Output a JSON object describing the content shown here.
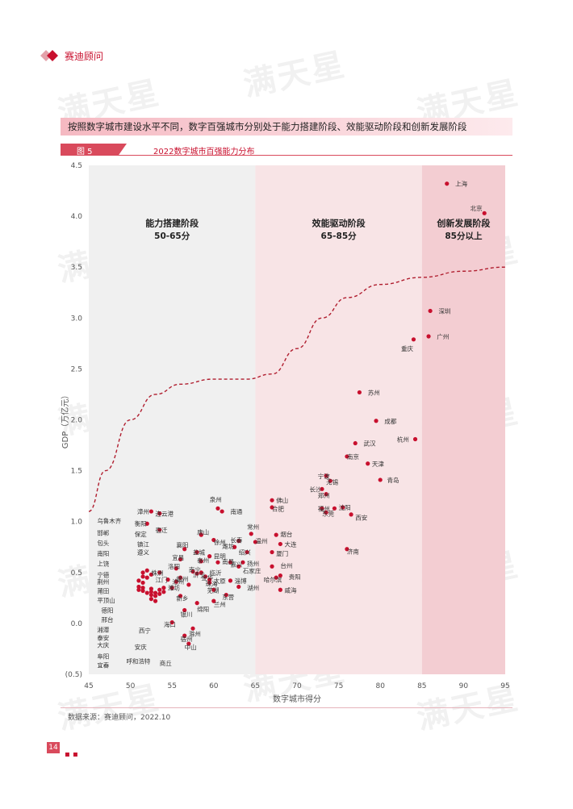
{
  "brand": {
    "name": "赛迪顾问"
  },
  "watermark": {
    "text": "满天星"
  },
  "headline": "按照数字城市建设水平不同，数字百强城市分别处于能力搭建阶段、效能驱动阶段和创新发展阶段",
  "figure": {
    "label": "图 5",
    "title": "2022数字城市百强能力分布"
  },
  "source": "数据来源：赛迪顾问，2022.10",
  "page": {
    "number": "14"
  },
  "chart_data": {
    "type": "scatter",
    "xlabel": "数字城市得分",
    "ylabel": "GDP（万亿元）",
    "xlim": [
      45,
      95
    ],
    "ylim": [
      -0.5,
      4.5
    ],
    "xticks": [
      "45",
      "50",
      "55",
      "60",
      "65",
      "70",
      "75",
      "80",
      "85",
      "90",
      "95"
    ],
    "yticks": [
      "(0.5)",
      "0.0",
      "0.5",
      "1.0",
      "1.5",
      "2.0",
      "2.5",
      "3.0",
      "3.5",
      "4.0",
      "4.5"
    ],
    "colors": {
      "point": "#c8102e",
      "zone1": "#f0f0f0",
      "zone2": "#f8e4e6",
      "zone3": "#f3cdd2",
      "curve": "#b01e2f"
    },
    "zones": [
      {
        "name": "能力搭建阶段",
        "range": "50-65分",
        "x0": 45,
        "x1": 65
      },
      {
        "name": "效能驱动阶段",
        "range": "65-85分",
        "x0": 65,
        "x1": 85
      },
      {
        "name": "创新发展阶段",
        "range": "85分以上",
        "x0": 85,
        "x1": 95
      }
    ],
    "trend_curve": [
      [
        45,
        1.1
      ],
      [
        47,
        1.5
      ],
      [
        50,
        2.0
      ],
      [
        53,
        2.25
      ],
      [
        56,
        2.35
      ],
      [
        60,
        2.4
      ],
      [
        64,
        2.4
      ],
      [
        67,
        2.45
      ],
      [
        70,
        2.7
      ],
      [
        73,
        3.0
      ],
      [
        76,
        3.2
      ],
      [
        80,
        3.33
      ],
      [
        85,
        3.4
      ],
      [
        90,
        3.46
      ],
      [
        95,
        3.5
      ]
    ],
    "points": [
      {
        "name": "上海",
        "x": 88.0,
        "y": 4.32
      },
      {
        "name": "北京",
        "x": 92.5,
        "y": 4.03
      },
      {
        "name": "深圳",
        "x": 86.0,
        "y": 3.07
      },
      {
        "name": "广州",
        "x": 85.8,
        "y": 2.82
      },
      {
        "name": "重庆",
        "x": 84.0,
        "y": 2.79
      },
      {
        "name": "苏州",
        "x": 77.5,
        "y": 2.27
      },
      {
        "name": "成都",
        "x": 79.5,
        "y": 1.99
      },
      {
        "name": "杭州",
        "x": 84.2,
        "y": 1.81
      },
      {
        "name": "武汉",
        "x": 77.0,
        "y": 1.77
      },
      {
        "name": "南京",
        "x": 76.0,
        "y": 1.64
      },
      {
        "name": "天津",
        "x": 78.5,
        "y": 1.57
      },
      {
        "name": "宁波",
        "x": 73.5,
        "y": 1.45
      },
      {
        "name": "无锡",
        "x": 74.0,
        "y": 1.4
      },
      {
        "name": "青岛",
        "x": 80.0,
        "y": 1.41
      },
      {
        "name": "长沙",
        "x": 73.0,
        "y": 1.32
      },
      {
        "name": "郑州",
        "x": 73.5,
        "y": 1.27
      },
      {
        "name": "福州",
        "x": 74.5,
        "y": 1.13
      },
      {
        "name": "济南",
        "x": 75.5,
        "y": 1.14
      },
      {
        "name": "东莞",
        "x": 73.5,
        "y": 1.09
      },
      {
        "name": "西安",
        "x": 76.5,
        "y": 1.07
      },
      {
        "name": "沈阳",
        "x": 73.0,
        "y": 1.13
      },
      {
        "name": "佛山",
        "x": 67.0,
        "y": 1.21
      },
      {
        "name": "合肥",
        "x": 67.0,
        "y": 1.14
      },
      {
        "name": "泉州",
        "x": 60.5,
        "y": 1.13
      },
      {
        "name": "南通",
        "x": 61.0,
        "y": 1.1
      },
      {
        "name": "常州",
        "x": 64.5,
        "y": 0.88
      },
      {
        "name": "烟台",
        "x": 67.5,
        "y": 0.87
      },
      {
        "name": "长春",
        "x": 63.0,
        "y": 0.81
      },
      {
        "name": "温州",
        "x": 65.0,
        "y": 0.8
      },
      {
        "name": "大连",
        "x": 68.0,
        "y": 0.78
      },
      {
        "name": "潍坊",
        "x": 62.5,
        "y": 0.75
      },
      {
        "name": "绍兴",
        "x": 64.0,
        "y": 0.7
      },
      {
        "name": "厦门",
        "x": 67.0,
        "y": 0.7
      },
      {
        "name": "扬州",
        "x": 63.5,
        "y": 0.6
      },
      {
        "name": "嘉兴",
        "x": 62.0,
        "y": 0.6
      },
      {
        "name": "石家庄",
        "x": 63.0,
        "y": 0.56
      },
      {
        "name": "台州",
        "x": 67.0,
        "y": 0.56
      },
      {
        "name": "济南2",
        "x": 76.0,
        "y": 0.73
      },
      {
        "name": "贵阳",
        "x": 68.0,
        "y": 0.47
      },
      {
        "name": "哈尔滨",
        "x": 67.5,
        "y": 0.45
      },
      {
        "name": "威海",
        "x": 68.0,
        "y": 0.33
      },
      {
        "name": "淄博",
        "x": 62.0,
        "y": 0.42
      },
      {
        "name": "湖州",
        "x": 63.0,
        "y": 0.36
      },
      {
        "name": "芜湖",
        "x": 60.0,
        "y": 0.33
      },
      {
        "name": "东营",
        "x": 61.5,
        "y": 0.28
      },
      {
        "name": "珠海",
        "x": 59.5,
        "y": 0.4
      },
      {
        "name": "兰州",
        "x": 60.0,
        "y": 0.22
      },
      {
        "name": "徐州",
        "x": 60.0,
        "y": 0.82
      },
      {
        "name": "唐山",
        "x": 58.5,
        "y": 0.87
      },
      {
        "name": "襄阳",
        "x": 56.5,
        "y": 0.73
      },
      {
        "name": "盐城",
        "x": 58.0,
        "y": 0.7
      },
      {
        "name": "昆明",
        "x": 59.5,
        "y": 0.66
      },
      {
        "name": "宜昌",
        "x": 56.0,
        "y": 0.63
      },
      {
        "name": "泰州",
        "x": 58.5,
        "y": 0.61
      },
      {
        "name": "南昌",
        "x": 60.5,
        "y": 0.6
      },
      {
        "name": "洛阳",
        "x": 55.5,
        "y": 0.54
      },
      {
        "name": "南宁",
        "x": 57.5,
        "y": 0.51
      },
      {
        "name": "济宁",
        "x": 58.0,
        "y": 0.49
      },
      {
        "name": "临沂",
        "x": 58.5,
        "y": 0.5
      },
      {
        "name": "金华",
        "x": 59.0,
        "y": 0.46
      },
      {
        "name": "太原",
        "x": 59.5,
        "y": 0.43
      },
      {
        "name": "赣州",
        "x": 56.0,
        "y": 0.45
      },
      {
        "name": "沧州",
        "x": 55.5,
        "y": 0.41
      },
      {
        "name": "保定",
        "x": 57.0,
        "y": 0.38
      },
      {
        "name": "株洲",
        "x": 53.5,
        "y": 0.5
      },
      {
        "name": "江门",
        "x": 54.5,
        "y": 0.43
      },
      {
        "name": "潍坊2",
        "x": 55.0,
        "y": 0.35
      },
      {
        "name": "新乡",
        "x": 56.0,
        "y": 0.27
      },
      {
        "name": "绵阳",
        "x": 58.0,
        "y": 0.2
      },
      {
        "name": "银川",
        "x": 56.5,
        "y": 0.13
      },
      {
        "name": "海口",
        "x": 55.0,
        "y": 0.01
      },
      {
        "name": "滁州",
        "x": 57.5,
        "y": -0.05
      },
      {
        "name": "宿州",
        "x": 56.5,
        "y": -0.12
      },
      {
        "name": "中山",
        "x": 57.0,
        "y": -0.2
      },
      {
        "name": "漳州",
        "x": 52.5,
        "y": 1.1
      },
      {
        "name": "连云港",
        "x": 53.5,
        "y": 1.08
      },
      {
        "name": "衡阳",
        "x": 52.0,
        "y": 0.98
      },
      {
        "name": "宿迁",
        "x": 53.5,
        "y": 0.92
      },
      {
        "name": "乌鲁木齐",
        "x": 51.5,
        "y": 0.5
      },
      {
        "name": "邯郸",
        "x": 51.5,
        "y": 0.46
      },
      {
        "name": "包头",
        "x": 51.0,
        "y": 0.42
      },
      {
        "name": "南阳",
        "x": 51.5,
        "y": 0.4
      },
      {
        "name": "上饶",
        "x": 51.0,
        "y": 0.36
      },
      {
        "name": "宁德",
        "x": 51.5,
        "y": 0.35
      },
      {
        "name": "荆州",
        "x": 51.0,
        "y": 0.33
      },
      {
        "name": "莆田",
        "x": 51.5,
        "y": 0.32
      },
      {
        "name": "平顶山",
        "x": 52.0,
        "y": 0.3
      },
      {
        "name": "湘潭",
        "x": 52.5,
        "y": 0.34
      },
      {
        "name": "泰安",
        "x": 52.5,
        "y": 0.31
      },
      {
        "name": "大庆",
        "x": 53.0,
        "y": 0.3
      },
      {
        "name": "德阳",
        "x": 52.5,
        "y": 0.28
      },
      {
        "name": "邢台",
        "x": 53.0,
        "y": 0.27
      },
      {
        "name": "阜阳",
        "x": 53.5,
        "y": 0.33
      },
      {
        "name": "宜春",
        "x": 54.0,
        "y": 0.35
      },
      {
        "name": "西宁",
        "x": 52.5,
        "y": 0.24
      },
      {
        "name": "安庆",
        "x": 53.0,
        "y": 0.22
      },
      {
        "name": "呼和浩特",
        "x": 53.5,
        "y": 0.29
      },
      {
        "name": "商丘",
        "x": 54.0,
        "y": 0.31
      },
      {
        "name": "镇江",
        "x": 52.0,
        "y": 0.52
      },
      {
        "name": "遵义",
        "x": 52.5,
        "y": 0.48
      },
      {
        "name": "保定2",
        "x": 52.0,
        "y": 0.45
      }
    ],
    "labels": [
      {
        "text": "上海",
        "x": 89.0,
        "y": 4.32
      },
      {
        "text": "北京",
        "x": 90.8,
        "y": 4.08
      },
      {
        "text": "深圳",
        "x": 87.0,
        "y": 3.07
      },
      {
        "text": "广州",
        "x": 86.8,
        "y": 2.82
      },
      {
        "text": "重庆",
        "x": 82.5,
        "y": 2.7
      },
      {
        "text": "苏州",
        "x": 78.5,
        "y": 2.27
      },
      {
        "text": "成都",
        "x": 80.5,
        "y": 1.99
      },
      {
        "text": "杭州",
        "x": 82.0,
        "y": 1.81
      },
      {
        "text": "武汉",
        "x": 78.0,
        "y": 1.77
      },
      {
        "text": "南京",
        "x": 76.0,
        "y": 1.64
      },
      {
        "text": "天津",
        "x": 79.0,
        "y": 1.57
      },
      {
        "text": "宁波",
        "x": 72.5,
        "y": 1.45
      },
      {
        "text": "无锡",
        "x": 73.5,
        "y": 1.39
      },
      {
        "text": "青岛",
        "x": 80.8,
        "y": 1.41
      },
      {
        "text": "长沙",
        "x": 71.5,
        "y": 1.32
      },
      {
        "text": "郑州",
        "x": 72.5,
        "y": 1.26
      },
      {
        "text": "福州",
        "x": 72.5,
        "y": 1.13
      },
      {
        "text": "沈阳",
        "x": 75.0,
        "y": 1.14
      },
      {
        "text": "东莞",
        "x": 73.0,
        "y": 1.08
      },
      {
        "text": "西安",
        "x": 77.0,
        "y": 1.04
      },
      {
        "text": "佛山",
        "x": 67.5,
        "y": 1.21
      },
      {
        "text": "合肥",
        "x": 67.0,
        "y": 1.13
      },
      {
        "text": "泉州",
        "x": 59.5,
        "y": 1.22
      },
      {
        "text": "南通",
        "x": 62.0,
        "y": 1.1
      },
      {
        "text": "常州",
        "x": 64.0,
        "y": 0.95
      },
      {
        "text": "烟台",
        "x": 68.0,
        "y": 0.88
      },
      {
        "text": "长春",
        "x": 62.0,
        "y": 0.82
      },
      {
        "text": "温州",
        "x": 65.0,
        "y": 0.81
      },
      {
        "text": "大连",
        "x": 68.5,
        "y": 0.78
      },
      {
        "text": "潍坊",
        "x": 61.0,
        "y": 0.76
      },
      {
        "text": "绍兴",
        "x": 63.0,
        "y": 0.7
      },
      {
        "text": "厦门",
        "x": 67.5,
        "y": 0.69
      },
      {
        "text": "嘉兴",
        "x": 62.0,
        "y": 0.58
      },
      {
        "text": "扬州",
        "x": 64.0,
        "y": 0.59
      },
      {
        "text": "石家庄",
        "x": 63.5,
        "y": 0.52
      },
      {
        "text": "台州",
        "x": 68.0,
        "y": 0.57
      },
      {
        "text": "济南",
        "x": 76.0,
        "y": 0.71
      },
      {
        "text": "贵阳",
        "x": 69.0,
        "y": 0.46
      },
      {
        "text": "哈尔滨",
        "x": 66.0,
        "y": 0.43
      },
      {
        "text": "威海",
        "x": 68.5,
        "y": 0.33
      },
      {
        "text": "淄博",
        "x": 62.5,
        "y": 0.42
      },
      {
        "text": "湖州",
        "x": 64.0,
        "y": 0.35
      },
      {
        "text": "芜湖",
        "x": 59.2,
        "y": 0.33
      },
      {
        "text": "东营",
        "x": 61.0,
        "y": 0.26
      },
      {
        "text": "珠海",
        "x": 59.0,
        "y": 0.39
      },
      {
        "text": "兰州",
        "x": 60.0,
        "y": 0.19
      },
      {
        "text": "徐州",
        "x": 60.0,
        "y": 0.8
      },
      {
        "text": "唐山",
        "x": 58.0,
        "y": 0.9
      },
      {
        "text": "襄阳",
        "x": 55.5,
        "y": 0.77
      },
      {
        "text": "盐城",
        "x": 57.5,
        "y": 0.7
      },
      {
        "text": "昆明",
        "x": 60.0,
        "y": 0.66
      },
      {
        "text": "宜昌",
        "x": 55.0,
        "y": 0.65
      },
      {
        "text": "泰州",
        "x": 58.0,
        "y": 0.62
      },
      {
        "text": "南昌",
        "x": 61.0,
        "y": 0.61
      },
      {
        "text": "洛阳",
        "x": 54.5,
        "y": 0.56
      },
      {
        "text": "南宁",
        "x": 57.0,
        "y": 0.53
      },
      {
        "text": "济宁",
        "x": 57.5,
        "y": 0.48
      },
      {
        "text": "临沂",
        "x": 59.5,
        "y": 0.5
      },
      {
        "text": "金华",
        "x": 58.5,
        "y": 0.45
      },
      {
        "text": "太原",
        "x": 60.0,
        "y": 0.42
      },
      {
        "text": "赣州",
        "x": 55.5,
        "y": 0.44
      },
      {
        "text": "沧州",
        "x": 55.0,
        "y": 0.41
      },
      {
        "text": "株洲",
        "x": 52.5,
        "y": 0.5
      },
      {
        "text": "江门",
        "x": 53.0,
        "y": 0.43
      },
      {
        "text": "潍坊",
        "x": 54.5,
        "y": 0.35
      },
      {
        "text": "新乡",
        "x": 55.5,
        "y": 0.25
      },
      {
        "text": "绵阳",
        "x": 58.0,
        "y": 0.14
      },
      {
        "text": "银川",
        "x": 56.0,
        "y": 0.09
      },
      {
        "text": "海口",
        "x": 54.0,
        "y": -0.01
      },
      {
        "text": "滁州",
        "x": 57.0,
        "y": -0.1
      },
      {
        "text": "宿州",
        "x": 56.0,
        "y": -0.15
      },
      {
        "text": "中山",
        "x": 56.5,
        "y": -0.23
      },
      {
        "text": "漳州",
        "x": 50.8,
        "y": 1.1
      },
      {
        "text": "连云港",
        "x": 53.0,
        "y": 1.08
      },
      {
        "text": "衡阳",
        "x": 50.5,
        "y": 0.98
      },
      {
        "text": "宿迁",
        "x": 53.0,
        "y": 0.92
      },
      {
        "text": "保定",
        "x": 50.5,
        "y": 0.88
      },
      {
        "text": "镇江",
        "x": 50.8,
        "y": 0.78
      },
      {
        "text": "遵义",
        "x": 50.8,
        "y": 0.7
      },
      {
        "text": "乌鲁木齐",
        "x": 46.0,
        "y": 1.01
      },
      {
        "text": "邯郸",
        "x": 46.0,
        "y": 0.89
      },
      {
        "text": "包头",
        "x": 46.0,
        "y": 0.79
      },
      {
        "text": "南阳",
        "x": 46.0,
        "y": 0.69
      },
      {
        "text": "上饶",
        "x": 46.0,
        "y": 0.59
      },
      {
        "text": "宁德",
        "x": 46.0,
        "y": 0.48
      },
      {
        "text": "荆州",
        "x": 46.0,
        "y": 0.41
      },
      {
        "text": "莆田",
        "x": 46.0,
        "y": 0.32
      },
      {
        "text": "平顶山",
        "x": 46.0,
        "y": 0.23
      },
      {
        "text": "德阳",
        "x": 46.5,
        "y": 0.13
      },
      {
        "text": "邢台",
        "x": 46.5,
        "y": 0.04
      },
      {
        "text": "湘潭",
        "x": 46.0,
        "y": -0.06
      },
      {
        "text": "泰安",
        "x": 46.0,
        "y": -0.14
      },
      {
        "text": "大庆",
        "x": 46.0,
        "y": -0.21
      },
      {
        "text": "阜阳",
        "x": 46.0,
        "y": -0.32
      },
      {
        "text": "宜春",
        "x": 46.0,
        "y": -0.41
      },
      {
        "text": "西宁",
        "x": 51.0,
        "y": -0.07
      },
      {
        "text": "安庆",
        "x": 50.5,
        "y": -0.23
      },
      {
        "text": "呼和浩特",
        "x": 49.5,
        "y": -0.37
      },
      {
        "text": "商丘",
        "x": 53.5,
        "y": -0.39
      }
    ]
  }
}
